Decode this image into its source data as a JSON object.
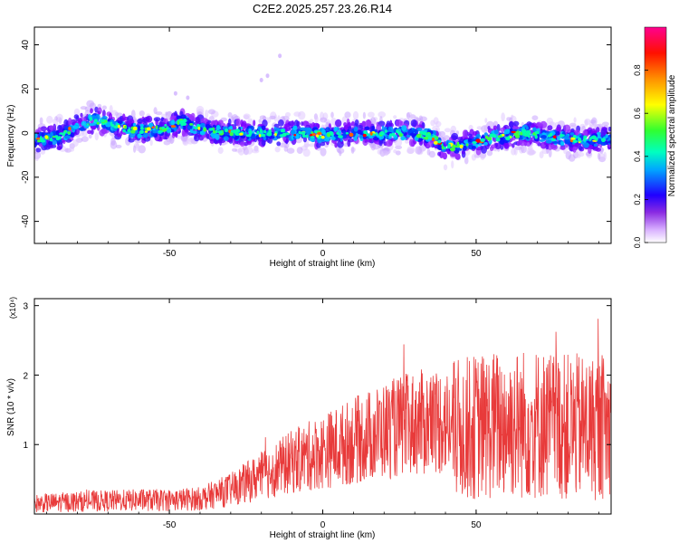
{
  "title": "C2E2.2025.257.23.26.R14",
  "chart_data": [
    {
      "type": "heatmap",
      "xlabel": "Height of straight line (km)",
      "ylabel": "Frequency (Hz)",
      "xlim": [
        -94,
        94
      ],
      "ylim": [
        -50,
        48
      ],
      "xticks": [
        "-50",
        "0",
        "50"
      ],
      "yticks": [
        "40",
        "20",
        "0",
        "-20",
        "-40"
      ],
      "colorbar": {
        "label": "Normalized spectral amplitude",
        "range": [
          0,
          1
        ],
        "ticks": [
          "0.0",
          "0.2",
          "0.4",
          "0.6",
          "0.8"
        ],
        "colors": [
          "#ffffff",
          "#c080ff",
          "#6000ff",
          "#0000ff",
          "#00c0ff",
          "#00ff80",
          "#40ff00",
          "#ffff00",
          "#ff8000",
          "#ff0000",
          "#ff0080"
        ]
      },
      "ridge_center_hz": [
        {
          "x": -94,
          "y": -3
        },
        {
          "x": -86,
          "y": -2
        },
        {
          "x": -80,
          "y": 3
        },
        {
          "x": -74,
          "y": 6
        },
        {
          "x": -68,
          "y": 3
        },
        {
          "x": -60,
          "y": 1
        },
        {
          "x": -52,
          "y": 2
        },
        {
          "x": -46,
          "y": 5
        },
        {
          "x": -40,
          "y": 2
        },
        {
          "x": -32,
          "y": 0
        },
        {
          "x": -24,
          "y": 0
        },
        {
          "x": -16,
          "y": 0
        },
        {
          "x": -8,
          "y": 0
        },
        {
          "x": 0,
          "y": -1
        },
        {
          "x": 10,
          "y": 0
        },
        {
          "x": 20,
          "y": 0
        },
        {
          "x": 30,
          "y": 0
        },
        {
          "x": 36,
          "y": -2
        },
        {
          "x": 40,
          "y": -7
        },
        {
          "x": 46,
          "y": -5
        },
        {
          "x": 56,
          "y": -2
        },
        {
          "x": 66,
          "y": 0
        },
        {
          "x": 76,
          "y": -2
        },
        {
          "x": 86,
          "y": -3
        },
        {
          "x": 94,
          "y": -3
        }
      ]
    },
    {
      "type": "line",
      "xlabel": "Height of straight line (km)",
      "ylabel": "SNR (10 * v/v)",
      "yscale_label": "(x10⁴)",
      "xlim": [
        -94,
        94
      ],
      "ylim": [
        0,
        3.1
      ],
      "xticks": [
        "-50",
        "0",
        "50"
      ],
      "yticks": [
        "3",
        "2",
        "1"
      ],
      "series_color": "#e83a3a",
      "trend": [
        {
          "x": -94,
          "y": 0.15
        },
        {
          "x": -80,
          "y": 0.18
        },
        {
          "x": -60,
          "y": 0.2
        },
        {
          "x": -50,
          "y": 0.2
        },
        {
          "x": -40,
          "y": 0.22
        },
        {
          "x": -30,
          "y": 0.35
        },
        {
          "x": -20,
          "y": 0.55
        },
        {
          "x": -10,
          "y": 0.75
        },
        {
          "x": 0,
          "y": 0.9
        },
        {
          "x": 10,
          "y": 1.05
        },
        {
          "x": 20,
          "y": 1.2
        },
        {
          "x": 30,
          "y": 1.3
        },
        {
          "x": 40,
          "y": 1.35
        },
        {
          "x": 42,
          "y": 1.2
        },
        {
          "x": 50,
          "y": 1.25
        },
        {
          "x": 60,
          "y": 1.3
        },
        {
          "x": 70,
          "y": 1.3
        },
        {
          "x": 80,
          "y": 1.25
        },
        {
          "x": 94,
          "y": 1.25
        }
      ]
    }
  ]
}
